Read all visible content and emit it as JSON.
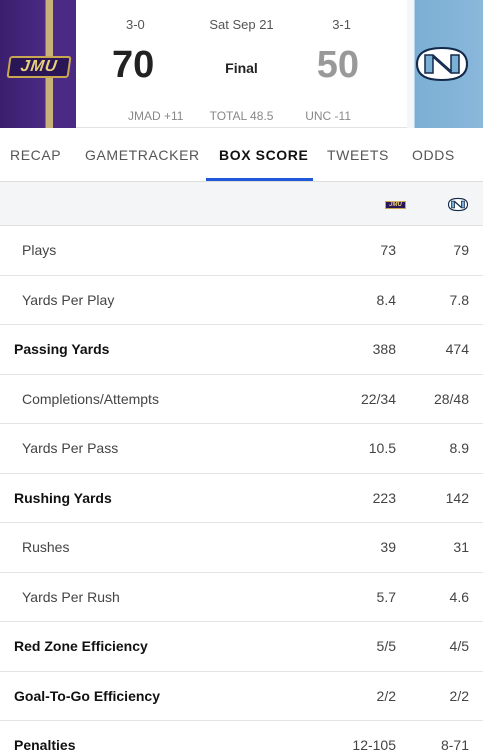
{
  "game": {
    "away": {
      "abbr": "JMU",
      "record": "3-0",
      "score": "70",
      "line": "JMAD +11",
      "color": "#4a2a85"
    },
    "home": {
      "abbr": "UNC",
      "record": "3-1",
      "score": "50",
      "line": "UNC -11",
      "color": "#7bafd4"
    },
    "date": "Sat Sep 21",
    "status": "Final",
    "total": "TOTAL 48.5"
  },
  "tabs": [
    {
      "label": "RECAP",
      "active": false
    },
    {
      "label": "GAMETRACKER",
      "active": false
    },
    {
      "label": "BOX SCORE",
      "active": true
    },
    {
      "label": "TWEETS",
      "active": false
    },
    {
      "label": "ODDS",
      "active": false
    }
  ],
  "accent_color": "#1f59d9",
  "stats": [
    {
      "label": "Plays",
      "jmu": "73",
      "unc": "79",
      "bold": false
    },
    {
      "label": "Yards Per Play",
      "jmu": "8.4",
      "unc": "7.8",
      "bold": false
    },
    {
      "label": "Passing Yards",
      "jmu": "388",
      "unc": "474",
      "bold": true
    },
    {
      "label": "Completions/Attempts",
      "jmu": "22/34",
      "unc": "28/48",
      "bold": false
    },
    {
      "label": "Yards Per Pass",
      "jmu": "10.5",
      "unc": "8.9",
      "bold": false
    },
    {
      "label": "Rushing Yards",
      "jmu": "223",
      "unc": "142",
      "bold": true
    },
    {
      "label": "Rushes",
      "jmu": "39",
      "unc": "31",
      "bold": false
    },
    {
      "label": "Yards Per Rush",
      "jmu": "5.7",
      "unc": "4.6",
      "bold": false
    },
    {
      "label": "Red Zone Efficiency",
      "jmu": "5/5",
      "unc": "4/5",
      "bold": true
    },
    {
      "label": "Goal-To-Go Efficiency",
      "jmu": "2/2",
      "unc": "2/2",
      "bold": true
    },
    {
      "label": "Penalties",
      "jmu": "12-105",
      "unc": "8-71",
      "bold": true
    }
  ]
}
